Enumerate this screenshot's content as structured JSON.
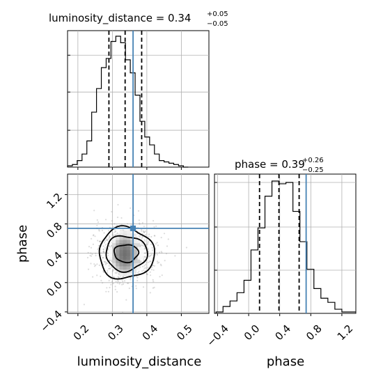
{
  "chart_data": {
    "type": "corner",
    "parameters": [
      "luminosity_distance",
      "phase"
    ],
    "truth": {
      "luminosity_distance": 0.36,
      "phase": 0.74
    },
    "colors": {
      "truth": "#4682b4",
      "hist": "#000000",
      "grid": "#b0b0b0"
    },
    "grid": true,
    "panels": {
      "ld_hist": {
        "title_main": "luminosity_distance = 0.34",
        "title_sup": "+0.05",
        "title_sub": "−0.05",
        "quantiles": [
          0.29,
          0.337,
          0.385
        ],
        "bin_edges": [
          0.17,
          0.184,
          0.198,
          0.212,
          0.226,
          0.24,
          0.254,
          0.268,
          0.282,
          0.296,
          0.31,
          0.324,
          0.338,
          0.352,
          0.366,
          0.38,
          0.394,
          0.408,
          0.422,
          0.436,
          0.45,
          0.464,
          0.478,
          0.492,
          0.506,
          0.52
        ],
        "counts": [
          0.01,
          0.02,
          0.05,
          0.1,
          0.2,
          0.42,
          0.6,
          0.76,
          0.83,
          0.96,
          1.0,
          0.95,
          0.82,
          0.72,
          0.55,
          0.35,
          0.23,
          0.17,
          0.1,
          0.05,
          0.04,
          0.03,
          0.02,
          0.01,
          0.0
        ],
        "xlim": [
          0.17,
          0.58
        ]
      },
      "phase_hist": {
        "title_main": "phase = 0.39",
        "title_sup": "+0.26",
        "title_sub": "−0.25",
        "quantiles": [
          0.14,
          0.39,
          0.65
        ],
        "bin_edges": [
          -0.42,
          -0.33,
          -0.24,
          -0.15,
          -0.06,
          0.03,
          0.12,
          0.21,
          0.3,
          0.39,
          0.48,
          0.57,
          0.66,
          0.75,
          0.84,
          0.93,
          1.02,
          1.11,
          1.2,
          1.29,
          1.38
        ],
        "counts": [
          0.01,
          0.05,
          0.09,
          0.15,
          0.24,
          0.46,
          0.62,
          0.85,
          0.96,
          0.94,
          0.95,
          0.74,
          0.52,
          0.32,
          0.18,
          0.11,
          0.08,
          0.03,
          0.01,
          0.01
        ],
        "xlim": [
          -0.44,
          1.38
        ]
      },
      "joint": {
        "xlim": [
          0.17,
          0.58
        ],
        "ylim": [
          -0.42,
          1.48
        ],
        "center": [
          0.34,
          0.4
        ],
        "contour_levels": [
          {
            "rx": 0.035,
            "ry": 0.12
          },
          {
            "rx": 0.06,
            "ry": 0.24
          },
          {
            "rx": 0.08,
            "ry": 0.35
          }
        ]
      }
    },
    "x_ticks": {
      "luminosity_distance": [
        "0.2",
        "0.3",
        "0.4",
        "0.5"
      ],
      "phase": [
        "−0.4",
        "0.0",
        "0.4",
        "0.8",
        "1.2"
      ]
    },
    "y_ticks": {
      "phase": [
        "−0.4",
        "0.0",
        "0.4",
        "0.8",
        "1.2"
      ]
    },
    "xlabels": [
      "luminosity_distance",
      "phase"
    ],
    "ylabel": "phase"
  }
}
